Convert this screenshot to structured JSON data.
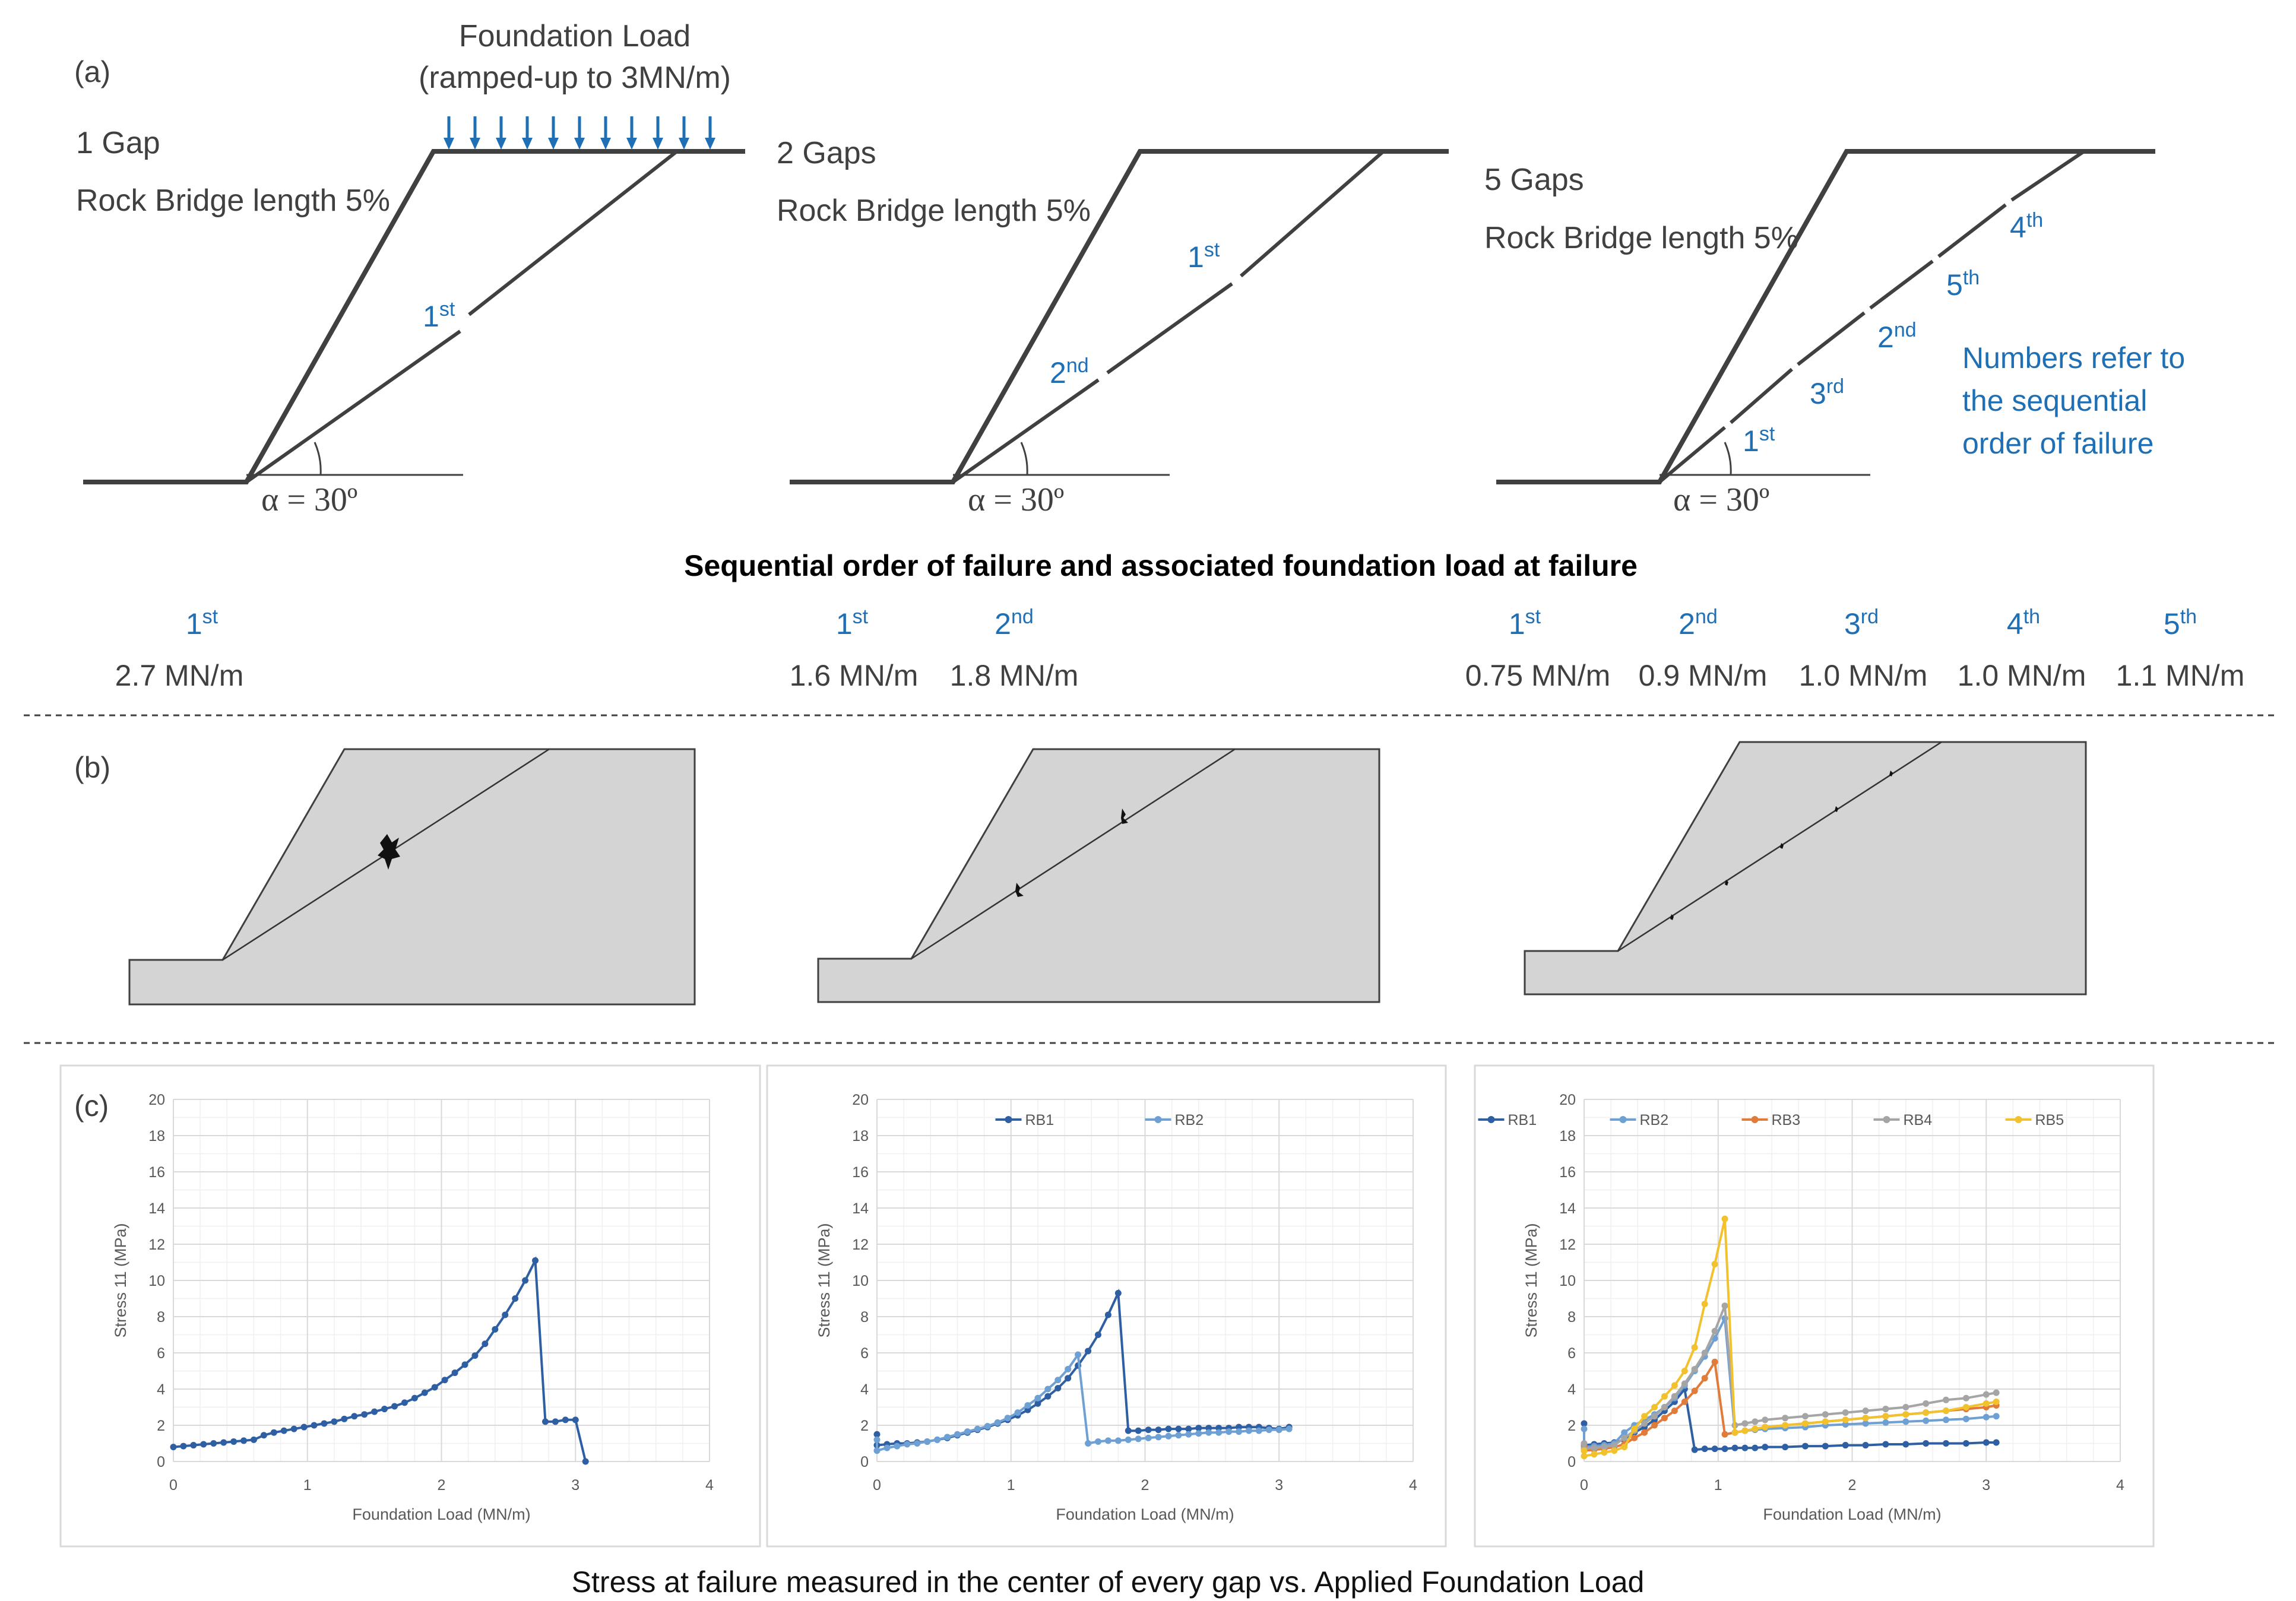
{
  "panel_labels": [
    "(a)",
    "(b)",
    "(c)"
  ],
  "load": {
    "title": "Foundation Load",
    "subtitle": "(ramped-up to 3MN/m)"
  },
  "slopes": [
    {
      "name": "1 Gap",
      "bridge": "Rock Bridge length 5%",
      "angle": "α = 30º",
      "gap_labels": [
        {
          "n": "1",
          "sup": "st"
        }
      ]
    },
    {
      "name": "2 Gaps",
      "bridge": "Rock Bridge length 5%",
      "angle": "α = 30º",
      "gap_labels": [
        {
          "n": "1",
          "sup": "st"
        },
        {
          "n": "2",
          "sup": "nd"
        }
      ]
    },
    {
      "name": "5 Gaps",
      "bridge": "Rock Bridge length 5%",
      "angle": "α = 30º",
      "gap_labels": [
        {
          "n": "4",
          "sup": "th"
        },
        {
          "n": "5",
          "sup": "th"
        },
        {
          "n": "2",
          "sup": "nd"
        },
        {
          "n": "3",
          "sup": "rd"
        },
        {
          "n": "1",
          "sup": "st"
        }
      ]
    }
  ],
  "note": [
    "Numbers refer to",
    "the sequential",
    "order of failure"
  ],
  "sequence_title": "Sequential order of failure and associated foundation load at failure",
  "sequence": [
    {
      "n": "1",
      "sup": "st",
      "load": "2.7 MN/m"
    },
    {
      "n": "1",
      "sup": "st",
      "load": "1.6 MN/m"
    },
    {
      "n": "2",
      "sup": "nd",
      "load": "1.8 MN/m"
    },
    {
      "n": "1",
      "sup": "st",
      "load": "0.75 MN/m"
    },
    {
      "n": "2",
      "sup": "nd",
      "load": "0.9 MN/m"
    },
    {
      "n": "3",
      "sup": "rd",
      "load": "1.0 MN/m"
    },
    {
      "n": "4",
      "sup": "th",
      "load": "1.0 MN/m"
    },
    {
      "n": "5",
      "sup": "th",
      "load": "1.1 MN/m"
    }
  ],
  "caption": "Stress at failure measured in the center of every gap vs. Applied Foundation Load",
  "chart_data": [
    {
      "type": "line",
      "xlabel": "Foundation Load (MN/m)",
      "ylabel": "Stress 11 (MPa)",
      "xlim": [
        0,
        4
      ],
      "ylim": [
        0,
        20
      ],
      "xticks": [
        "0",
        "1",
        "2",
        "3",
        "4"
      ],
      "yticks": [
        "0",
        "2",
        "4",
        "6",
        "8",
        "10",
        "12",
        "14",
        "16",
        "18",
        "20"
      ],
      "series": [
        {
          "name": "RB1",
          "color": "#2e5fa3",
          "x": [
            0,
            0.075,
            0.15,
            0.225,
            0.3,
            0.375,
            0.45,
            0.525,
            0.6,
            0.675,
            0.75,
            0.825,
            0.9,
            0.975,
            1.05,
            1.125,
            1.2,
            1.275,
            1.35,
            1.425,
            1.5,
            1.575,
            1.65,
            1.725,
            1.8,
            1.875,
            1.95,
            2.025,
            2.1,
            2.175,
            2.25,
            2.325,
            2.4,
            2.475,
            2.55,
            2.625,
            2.7,
            2.775,
            2.85,
            2.925,
            3.0,
            3.075
          ],
          "y": [
            0.8,
            0.85,
            0.9,
            0.95,
            1.0,
            1.05,
            1.1,
            1.15,
            1.2,
            1.45,
            1.6,
            1.7,
            1.8,
            1.9,
            2.0,
            2.1,
            2.2,
            2.35,
            2.5,
            2.6,
            2.75,
            2.9,
            3.05,
            3.25,
            3.5,
            3.8,
            4.1,
            4.5,
            4.9,
            5.35,
            5.85,
            6.5,
            7.3,
            8.1,
            9.0,
            10.0,
            11.1,
            2.2,
            2.2,
            2.3,
            2.3,
            0.0
          ]
        }
      ]
    },
    {
      "type": "line",
      "xlabel": "Foundation Load (MN/m)",
      "ylabel": "Stress 11 (MPa)",
      "xlim": [
        0,
        4
      ],
      "ylim": [
        0,
        20
      ],
      "xticks": [
        "0",
        "1",
        "2",
        "3",
        "4"
      ],
      "yticks": [
        "0",
        "2",
        "4",
        "6",
        "8",
        "10",
        "12",
        "14",
        "16",
        "18",
        "20"
      ],
      "legend": "top",
      "series": [
        {
          "name": "RB1",
          "color": "#2e5fa3",
          "x": [
            0,
            0,
            0.075,
            0.15,
            0.225,
            0.3,
            0.375,
            0.45,
            0.525,
            0.6,
            0.675,
            0.75,
            0.825,
            0.9,
            0.975,
            1.05,
            1.125,
            1.2,
            1.275,
            1.35,
            1.425,
            1.5,
            1.575,
            1.65,
            1.725,
            1.8,
            1.875,
            1.95,
            2.025,
            2.1,
            2.175,
            2.25,
            2.325,
            2.4,
            2.475,
            2.55,
            2.625,
            2.7,
            2.775,
            2.85,
            2.925,
            3.0,
            3.075
          ],
          "y": [
            1.5,
            0.9,
            0.95,
            1.0,
            1.0,
            1.05,
            1.1,
            1.2,
            1.3,
            1.45,
            1.6,
            1.75,
            1.9,
            2.1,
            2.3,
            2.55,
            2.85,
            3.2,
            3.6,
            4.05,
            4.6,
            5.3,
            6.1,
            7.0,
            8.1,
            9.3,
            1.7,
            1.7,
            1.75,
            1.75,
            1.8,
            1.8,
            1.8,
            1.85,
            1.85,
            1.85,
            1.85,
            1.9,
            1.9,
            1.9,
            1.85,
            1.8,
            1.9
          ]
        },
        {
          "name": "RB2",
          "color": "#6fa0d4",
          "x": [
            0,
            0,
            0.075,
            0.15,
            0.225,
            0.3,
            0.375,
            0.45,
            0.525,
            0.6,
            0.675,
            0.75,
            0.825,
            0.9,
            0.975,
            1.05,
            1.125,
            1.2,
            1.275,
            1.35,
            1.425,
            1.5,
            1.575,
            1.65,
            1.725,
            1.8,
            1.875,
            1.95,
            2.025,
            2.1,
            2.175,
            2.25,
            2.325,
            2.4,
            2.475,
            2.55,
            2.625,
            2.7,
            2.775,
            2.85,
            2.925,
            3.0,
            3.075
          ],
          "y": [
            1.2,
            0.6,
            0.75,
            0.85,
            0.95,
            1.0,
            1.1,
            1.2,
            1.35,
            1.5,
            1.65,
            1.8,
            1.95,
            2.15,
            2.4,
            2.7,
            3.1,
            3.5,
            4.0,
            4.5,
            5.1,
            5.9,
            1.0,
            1.1,
            1.15,
            1.15,
            1.2,
            1.25,
            1.3,
            1.35,
            1.4,
            1.45,
            1.5,
            1.55,
            1.6,
            1.6,
            1.65,
            1.65,
            1.7,
            1.7,
            1.75,
            1.75,
            1.8
          ]
        }
      ]
    },
    {
      "type": "line",
      "xlabel": "Foundation Load (MN/m)",
      "ylabel": "Stress 11 (MPa)",
      "xlim": [
        0,
        4
      ],
      "ylim": [
        0,
        20
      ],
      "xticks": [
        "0",
        "1",
        "2",
        "3",
        "4"
      ],
      "yticks": [
        "0",
        "2",
        "4",
        "6",
        "8",
        "10",
        "12",
        "14",
        "16",
        "18",
        "20"
      ],
      "legend": "top",
      "series": [
        {
          "name": "RB1",
          "color": "#2e5fa3",
          "x": [
            0,
            0,
            0.075,
            0.15,
            0.225,
            0.3,
            0.375,
            0.45,
            0.525,
            0.6,
            0.675,
            0.75,
            0.825,
            0.9,
            0.975,
            1.05,
            1.125,
            1.2,
            1.275,
            1.35,
            1.5,
            1.65,
            1.8,
            1.95,
            2.1,
            2.25,
            2.4,
            2.55,
            2.7,
            2.85,
            3.0,
            3.075
          ],
          "y": [
            2.1,
            0.9,
            0.95,
            1.0,
            1.05,
            1.2,
            1.6,
            1.9,
            2.3,
            2.8,
            3.3,
            4.0,
            0.65,
            0.7,
            0.7,
            0.7,
            0.75,
            0.75,
            0.75,
            0.8,
            0.8,
            0.85,
            0.85,
            0.9,
            0.9,
            0.95,
            0.95,
            1.0,
            1.0,
            1.0,
            1.05,
            1.05
          ]
        },
        {
          "name": "RB2",
          "color": "#6fa0d4",
          "x": [
            0,
            0,
            0.075,
            0.15,
            0.225,
            0.3,
            0.375,
            0.45,
            0.525,
            0.6,
            0.675,
            0.75,
            0.825,
            0.9,
            0.975,
            1.05,
            1.125,
            1.2,
            1.275,
            1.35,
            1.5,
            1.65,
            1.8,
            1.95,
            2.1,
            2.25,
            2.4,
            2.55,
            2.7,
            2.85,
            3.0,
            3.075
          ],
          "y": [
            1.8,
            0.8,
            0.85,
            0.9,
            1.0,
            1.6,
            2.0,
            2.3,
            2.6,
            3.0,
            3.5,
            4.2,
            5.0,
            5.8,
            6.8,
            7.9,
            1.6,
            1.7,
            1.75,
            1.8,
            1.85,
            1.9,
            2.0,
            2.05,
            2.1,
            2.15,
            2.2,
            2.25,
            2.3,
            2.35,
            2.45,
            2.5
          ]
        },
        {
          "name": "RB3",
          "color": "#e07b39",
          "x": [
            0,
            0,
            0.075,
            0.15,
            0.225,
            0.3,
            0.375,
            0.45,
            0.525,
            0.6,
            0.675,
            0.75,
            0.825,
            0.9,
            0.975,
            1.05,
            1.125,
            1.2,
            1.275,
            1.35,
            1.5,
            1.65,
            1.8,
            1.95,
            2.1,
            2.25,
            2.4,
            2.55,
            2.7,
            2.85,
            3.0,
            3.075
          ],
          "y": [
            0.9,
            0.6,
            0.65,
            0.7,
            0.8,
            0.95,
            1.3,
            1.6,
            2.0,
            2.4,
            2.8,
            3.3,
            3.9,
            4.6,
            5.5,
            1.5,
            1.6,
            1.7,
            1.8,
            1.9,
            2.0,
            2.1,
            2.2,
            2.3,
            2.4,
            2.5,
            2.6,
            2.7,
            2.8,
            2.9,
            3.0,
            3.1
          ]
        },
        {
          "name": "RB4",
          "color": "#a5a5a5",
          "x": [
            0,
            0,
            0.075,
            0.15,
            0.225,
            0.3,
            0.375,
            0.45,
            0.525,
            0.6,
            0.675,
            0.75,
            0.825,
            0.9,
            0.975,
            1.05,
            1.125,
            1.2,
            1.275,
            1.35,
            1.5,
            1.65,
            1.8,
            1.95,
            2.1,
            2.25,
            2.4,
            2.55,
            2.7,
            2.85,
            3.0,
            3.075
          ],
          "y": [
            1.0,
            0.7,
            0.75,
            0.8,
            0.9,
            1.3,
            1.7,
            2.1,
            2.5,
            3.0,
            3.6,
            4.3,
            5.1,
            6.0,
            7.2,
            8.6,
            2.0,
            2.1,
            2.2,
            2.3,
            2.4,
            2.5,
            2.6,
            2.7,
            2.8,
            2.9,
            3.0,
            3.2,
            3.4,
            3.5,
            3.7,
            3.8
          ]
        },
        {
          "name": "RB5",
          "color": "#f2c12e",
          "x": [
            0,
            0,
            0.075,
            0.15,
            0.225,
            0.3,
            0.375,
            0.45,
            0.525,
            0.6,
            0.675,
            0.75,
            0.825,
            0.9,
            0.975,
            1.05,
            1.125,
            1.2,
            1.275,
            1.35,
            1.5,
            1.65,
            1.8,
            1.95,
            2.1,
            2.25,
            2.4,
            2.55,
            2.7,
            2.85,
            3.0,
            3.075
          ],
          "y": [
            0.6,
            0.3,
            0.4,
            0.5,
            0.6,
            0.8,
            1.8,
            2.5,
            3.0,
            3.6,
            4.2,
            5.0,
            6.3,
            8.7,
            10.9,
            13.4,
            1.6,
            1.7,
            1.8,
            1.9,
            2.0,
            2.1,
            2.2,
            2.3,
            2.4,
            2.5,
            2.6,
            2.7,
            2.8,
            3.0,
            3.2,
            3.3
          ]
        }
      ]
    }
  ]
}
